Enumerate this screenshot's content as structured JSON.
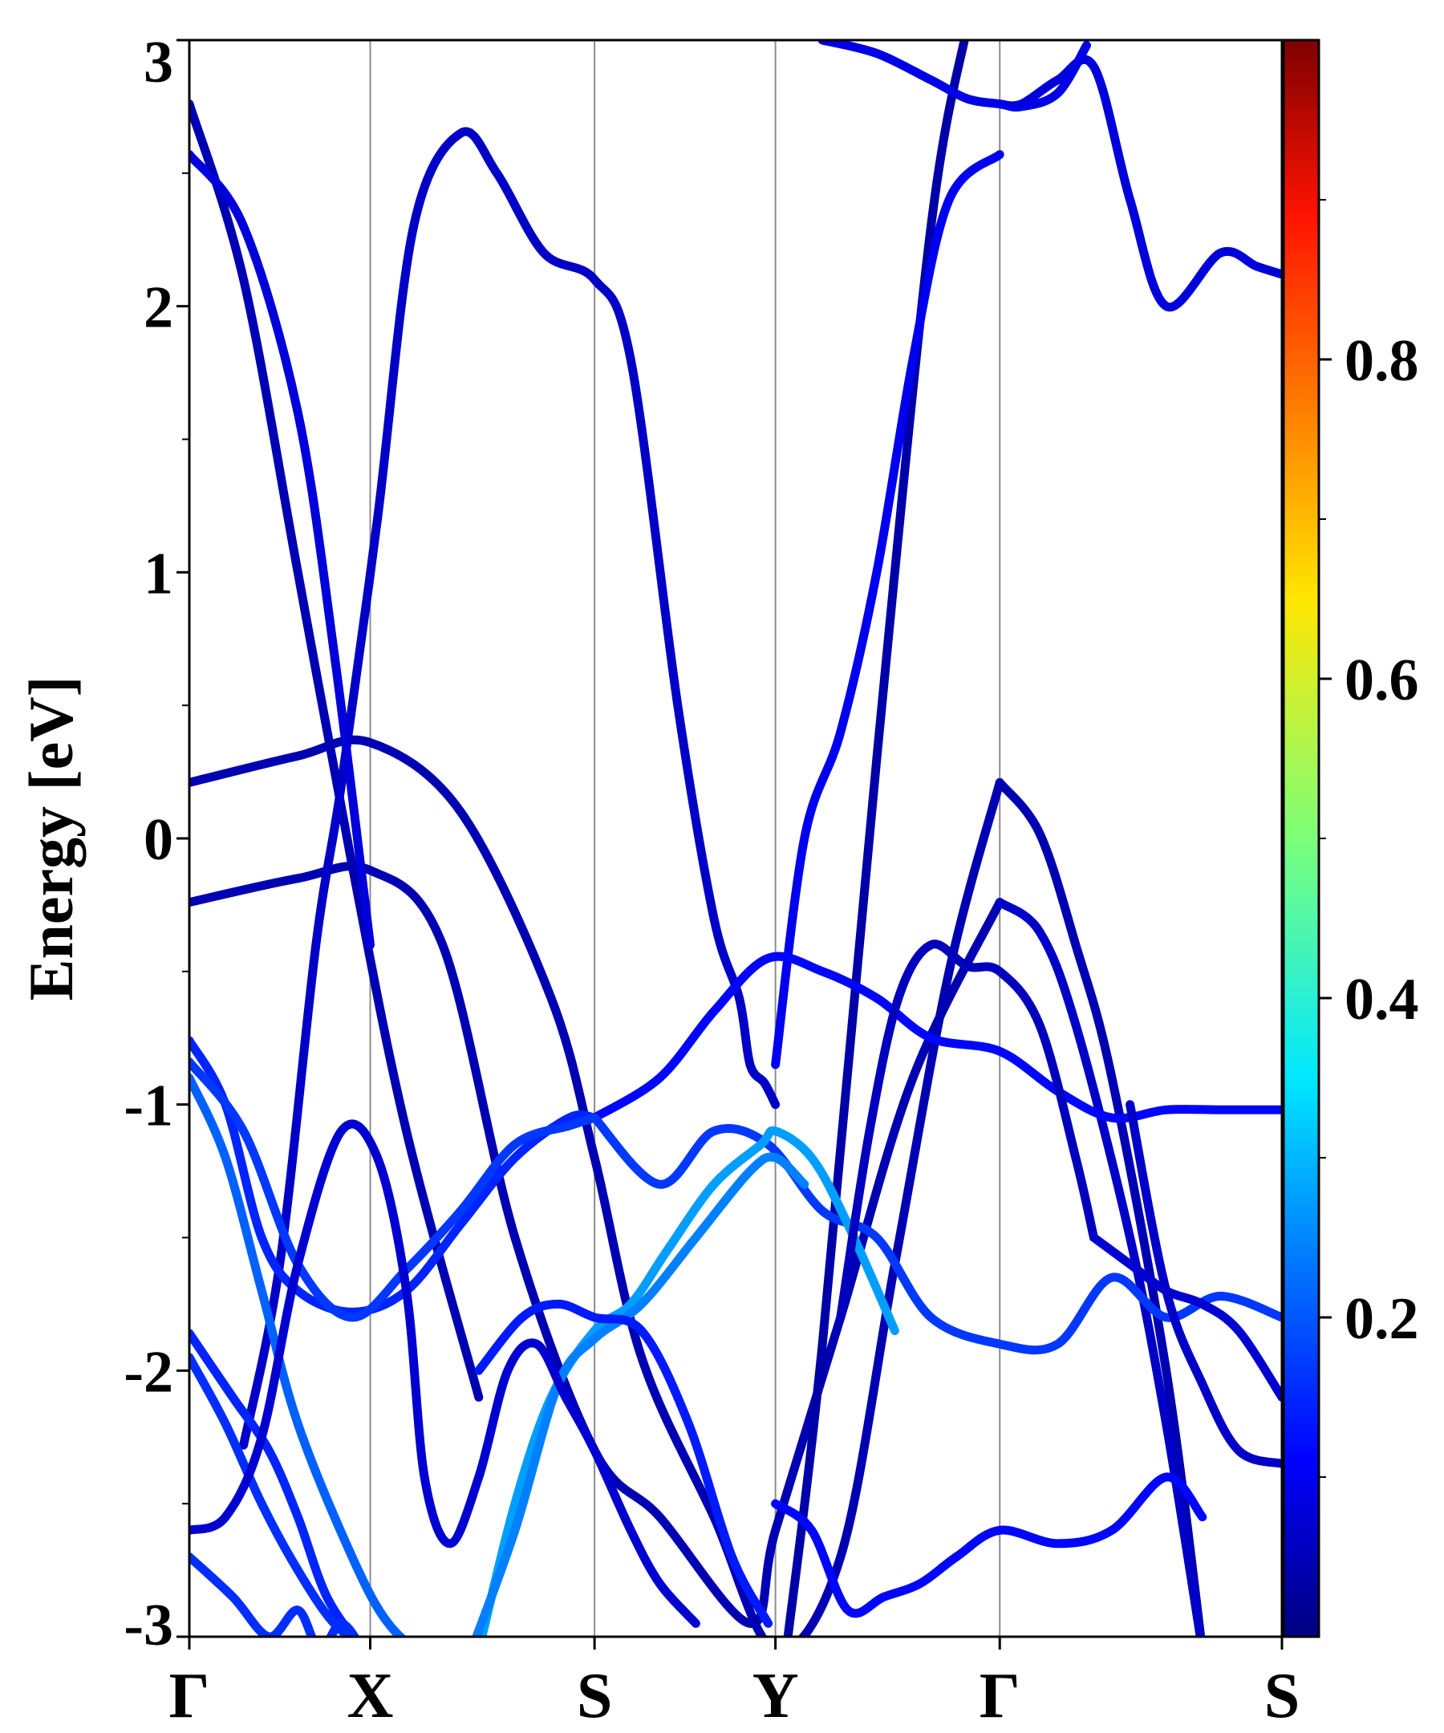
{
  "chart_data": {
    "type": "line",
    "title": "",
    "ylabel": "Energy [eV]",
    "xlabel": "",
    "ylim": [
      -3,
      3
    ],
    "y_ticks": [
      "3",
      "2",
      "1",
      "0",
      "-1",
      "-2",
      "-3"
    ],
    "y_tick_values": [
      3,
      2,
      1,
      0,
      -1,
      -2,
      -3
    ],
    "k_points": [
      {
        "label": "Γ",
        "k": 0.0
      },
      {
        "label": "X",
        "k": 0.5
      },
      {
        "label": "S",
        "k": 1.12
      },
      {
        "label": "Y",
        "k": 1.62
      },
      {
        "label": "Γ",
        "k": 2.24
      },
      {
        "label": "S",
        "k": 3.02
      }
    ],
    "colorbar": {
      "colormap": "jet",
      "range": [
        0.0,
        1.0
      ],
      "tick_labels": [
        "0.8",
        "0.6",
        "0.4",
        "0.2"
      ],
      "tick_values": [
        0.8,
        0.6,
        0.4,
        0.2
      ],
      "minor_tick_values": [
        0.1,
        0.3,
        0.5,
        0.7,
        0.9
      ]
    },
    "series": [
      {
        "weight": 0.05,
        "k": [
          0,
          0.3,
          0.5,
          0.75,
          1.0,
          1.12,
          1.25,
          1.45,
          1.62,
          1.8,
          1.95,
          2.1,
          2.24
        ],
        "energy": [
          0.21,
          0.31,
          0.36,
          0.1,
          -0.6,
          -1.2,
          -1.95,
          -2.55,
          -3.05,
          -2.7,
          -1.6,
          -0.5,
          0.21
        ]
      },
      {
        "weight": 0.05,
        "k": [
          2.24,
          2.35,
          2.45,
          2.55,
          2.7,
          2.8
        ],
        "energy": [
          0.21,
          0.02,
          -0.4,
          -0.9,
          -2.0,
          -3.05
        ]
      },
      {
        "weight": 0.05,
        "k": [
          0,
          0.3,
          0.5,
          0.7,
          0.9,
          1.12,
          1.3,
          1.55,
          1.62,
          1.8,
          2.0,
          2.24
        ],
        "energy": [
          -0.24,
          -0.15,
          -0.12,
          -0.4,
          -1.5,
          -2.3,
          -2.55,
          -2.95,
          -2.6,
          -1.8,
          -0.9,
          -0.24
        ]
      },
      {
        "weight": 0.07,
        "k": [
          2.24,
          2.35,
          2.45,
          2.6,
          2.7,
          2.8
        ],
        "energy": [
          -0.24,
          -0.35,
          -0.7,
          -1.5,
          -2.2,
          -3.05
        ]
      },
      {
        "weight": 0.05,
        "k": [
          0,
          0.15,
          0.3,
          0.45,
          0.6,
          0.8
        ],
        "energy": [
          2.76,
          2.1,
          1.0,
          -0.1,
          -1.1,
          -2.1
        ]
      },
      {
        "weight": 0.04,
        "k": [
          1.65,
          1.75,
          1.9,
          2.05,
          2.15
        ],
        "energy": [
          -3.05,
          -1.9,
          0.3,
          2.3,
          3.05
        ]
      },
      {
        "weight": 0.07,
        "k": [
          0.15,
          0.25,
          0.35,
          0.42,
          0.52,
          0.62,
          0.75,
          0.85,
          0.98,
          1.12,
          1.22,
          1.35,
          1.45,
          1.52,
          1.55,
          1.59,
          1.62
        ],
        "energy": [
          -2.28,
          -1.6,
          -0.4,
          0.2,
          1.2,
          2.3,
          2.65,
          2.5,
          2.2,
          2.1,
          1.8,
          0.5,
          -0.3,
          -0.6,
          -0.85,
          -0.92,
          -1.0
        ]
      },
      {
        "weight": 0.11,
        "k": [
          1.62,
          1.7,
          1.8,
          1.9,
          2.0,
          2.1,
          2.24
        ],
        "energy": [
          -0.85,
          0.0,
          0.4,
          1.0,
          1.8,
          2.4,
          2.57
        ]
      },
      {
        "weight": 0.09,
        "k": [
          0,
          0.15,
          0.3,
          0.4,
          0.5
        ],
        "energy": [
          2.57,
          2.3,
          1.6,
          0.7,
          -0.4
        ]
      },
      {
        "weight": 0.16,
        "k": [
          0,
          0.1,
          0.2,
          0.3,
          0.45,
          0.6,
          0.75,
          0.9,
          1.05,
          1.12
        ],
        "energy": [
          -0.76,
          -1.0,
          -1.5,
          -1.7,
          -1.78,
          -1.7,
          -1.45,
          -1.2,
          -1.05,
          -1.05
        ]
      },
      {
        "weight": 0.13,
        "k": [
          1.12,
          1.3,
          1.45,
          1.6,
          1.75,
          1.9,
          2.05,
          2.24,
          2.4,
          2.55,
          2.7,
          2.85,
          3.02
        ],
        "energy": [
          -1.05,
          -0.9,
          -0.65,
          -0.45,
          -0.5,
          -0.6,
          -0.75,
          -0.8,
          -0.95,
          -1.05,
          -1.02,
          -1.02,
          -1.02
        ]
      },
      {
        "weight": 0.18,
        "k": [
          0,
          0.15,
          0.3,
          0.45,
          0.6,
          0.75,
          0.9,
          1.05,
          1.12
        ],
        "energy": [
          -0.84,
          -1.1,
          -1.6,
          -1.8,
          -1.62,
          -1.4,
          -1.15,
          -1.08,
          -1.05
        ]
      },
      {
        "weight": 0.18,
        "k": [
          1.12,
          1.3,
          1.45,
          1.6,
          1.75,
          1.9,
          2.05,
          2.24,
          2.4,
          2.55,
          2.7,
          2.85,
          3.02
        ],
        "energy": [
          -1.05,
          -1.3,
          -1.1,
          -1.15,
          -1.4,
          -1.5,
          -1.8,
          -1.9,
          -1.9,
          -1.65,
          -1.8,
          -1.72,
          -1.8
        ]
      },
      {
        "weight": 0.22,
        "k": [
          0,
          0.1,
          0.2,
          0.3,
          0.45,
          0.55,
          0.65,
          0.8,
          0.9
        ],
        "energy": [
          -0.9,
          -1.2,
          -1.7,
          -2.2,
          -2.7,
          -2.95,
          -3.05,
          -3.05,
          -3.05
        ]
      },
      {
        "weight": 0.28,
        "k": [
          0.8,
          0.9,
          1.0,
          1.12,
          1.22,
          1.32,
          1.45,
          1.58,
          1.62,
          1.72,
          1.82,
          1.95
        ],
        "energy": [
          -3.05,
          -2.5,
          -2.1,
          -1.85,
          -1.75,
          -1.55,
          -1.3,
          -1.15,
          -1.1,
          -1.2,
          -1.45,
          -1.85
        ]
      },
      {
        "weight": 0.25,
        "k": [
          0.78,
          0.9,
          1.02,
          1.12,
          1.25,
          1.4,
          1.55,
          1.62,
          1.7
        ],
        "energy": [
          -3.05,
          -2.6,
          -2.05,
          -1.88,
          -1.75,
          -1.5,
          -1.25,
          -1.2,
          -1.3
        ]
      },
      {
        "weight": 0.15,
        "k": [
          0.8,
          0.92,
          1.02,
          1.12,
          1.25,
          1.38,
          1.5,
          1.6
        ],
        "energy": [
          -2.0,
          -1.8,
          -1.75,
          -1.8,
          -1.85,
          -2.2,
          -2.7,
          -2.95
        ]
      },
      {
        "weight": 0.16,
        "k": [
          0,
          0.12,
          0.22,
          0.3,
          0.38,
          0.48
        ],
        "energy": [
          -1.86,
          -2.1,
          -2.3,
          -2.55,
          -2.85,
          -3.05
        ]
      },
      {
        "weight": 0.17,
        "k": [
          0,
          0.1,
          0.2,
          0.3,
          0.4,
          0.5
        ],
        "energy": [
          -1.95,
          -2.2,
          -2.5,
          -2.75,
          -2.95,
          -3.05
        ]
      },
      {
        "weight": 0.08,
        "k": [
          0,
          0.1,
          0.2,
          0.3,
          0.42,
          0.52,
          0.6,
          0.65,
          0.72,
          0.8,
          0.88,
          0.96,
          1.04,
          1.12,
          1.22,
          1.3,
          1.4
        ],
        "energy": [
          -2.6,
          -2.55,
          -2.25,
          -1.6,
          -1.1,
          -1.2,
          -1.7,
          -2.4,
          -2.65,
          -2.4,
          -2.0,
          -1.9,
          -2.1,
          -2.3,
          -2.6,
          -2.8,
          -2.95
        ]
      },
      {
        "weight": 0.13,
        "k": [
          1.62,
          1.72,
          1.82,
          1.92,
          2.02,
          2.12,
          2.24,
          2.4,
          2.55,
          2.7,
          2.8
        ],
        "energy": [
          -2.5,
          -2.6,
          -2.9,
          -2.85,
          -2.8,
          -2.7,
          -2.6,
          -2.65,
          -2.6,
          -2.4,
          -2.55
        ]
      },
      {
        "weight": 0.17,
        "k": [
          0,
          0.12,
          0.22,
          0.3,
          0.36,
          0.42,
          0.48
        ],
        "energy": [
          -2.7,
          -2.85,
          -3.0,
          -2.9,
          -3.05,
          -2.95,
          -3.05
        ]
      },
      {
        "weight": 0.06,
        "k": [
          1.8,
          1.88,
          1.96,
          2.05,
          2.15,
          2.24,
          2.35,
          2.45,
          2.5
        ],
        "energy": [
          -1.8,
          -1.1,
          -0.6,
          -0.4,
          -0.48,
          -0.5,
          -0.7,
          -1.2,
          -1.5
        ]
      },
      {
        "weight": 0.08,
        "k": [
          2.5,
          2.6,
          2.7,
          2.8,
          2.9,
          3.02
        ],
        "energy": [
          -1.5,
          -1.6,
          -1.7,
          -1.75,
          -1.85,
          -2.1
        ]
      },
      {
        "weight": 0.07,
        "k": [
          2.6,
          2.7,
          2.8,
          2.9,
          3.02
        ],
        "energy": [
          -1.0,
          -1.7,
          -2.05,
          -2.3,
          -2.35
        ]
      },
      {
        "weight": 0.09,
        "k": [
          2.24,
          2.3,
          2.4,
          2.5,
          2.6,
          2.7,
          2.85,
          2.95,
          3.02
        ],
        "energy": [
          2.76,
          2.76,
          2.85,
          2.9,
          2.4,
          2.0,
          2.2,
          2.15,
          2.12
        ]
      },
      {
        "weight": 0.1,
        "k": [
          1.75,
          1.9,
          2.05,
          2.15,
          2.24,
          2.3,
          2.4,
          2.48
        ],
        "energy": [
          3.0,
          2.95,
          2.85,
          2.78,
          2.76,
          2.75,
          2.8,
          2.98
        ]
      }
    ]
  }
}
